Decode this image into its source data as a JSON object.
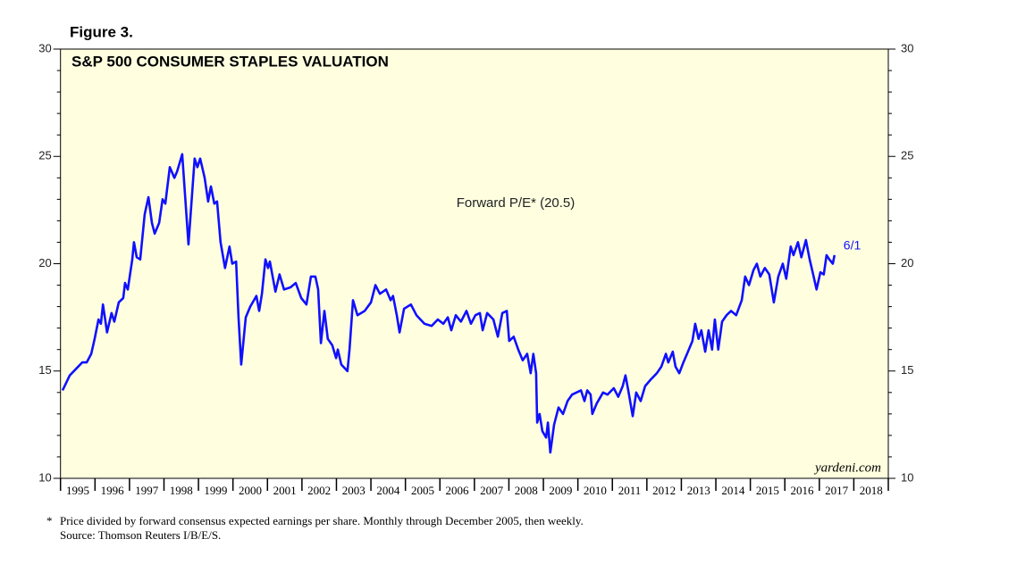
{
  "chart_data": {
    "type": "line",
    "figure_label": "Figure 3.",
    "title": "S&P 500 CONSUMER STAPLES VALUATION",
    "annotation": "Forward P/E* (20.5)",
    "end_label": "6/1",
    "source_brand": "yardeni.com",
    "footnote_marker": "*",
    "footnote": "Price divided by forward consensus expected earnings per share. Monthly through December 2005, then weekly.",
    "source": "Source: Thomson Reuters I/B/E/S.",
    "background": "#ffffe0",
    "xlim": [
      1995,
      2019
    ],
    "xticks": [
      1995,
      1996,
      1997,
      1998,
      1999,
      2000,
      2001,
      2002,
      2003,
      2004,
      2005,
      2006,
      2007,
      2008,
      2009,
      2010,
      2011,
      2012,
      2013,
      2014,
      2015,
      2016,
      2017,
      2018,
      2019
    ],
    "xtick_labels": [
      {
        "value": 1995.5,
        "label": "1995"
      },
      {
        "value": 1996.5,
        "label": "1996"
      },
      {
        "value": 1997.5,
        "label": "1997"
      },
      {
        "value": 1998.5,
        "label": "1998"
      },
      {
        "value": 1999.5,
        "label": "1999"
      },
      {
        "value": 2000.5,
        "label": "2000"
      },
      {
        "value": 2001.5,
        "label": "2001"
      },
      {
        "value": 2002.5,
        "label": "2002"
      },
      {
        "value": 2003.5,
        "label": "2003"
      },
      {
        "value": 2004.5,
        "label": "2004"
      },
      {
        "value": 2005.5,
        "label": "2005"
      },
      {
        "value": 2006.5,
        "label": "2006"
      },
      {
        "value": 2007.5,
        "label": "2007"
      },
      {
        "value": 2008.5,
        "label": "2008"
      },
      {
        "value": 2009.5,
        "label": "2009"
      },
      {
        "value": 2010.5,
        "label": "2010"
      },
      {
        "value": 2011.5,
        "label": "2011"
      },
      {
        "value": 2012.5,
        "label": "2012"
      },
      {
        "value": 2013.5,
        "label": "2013"
      },
      {
        "value": 2014.5,
        "label": "2014"
      },
      {
        "value": 2015.5,
        "label": "2015"
      },
      {
        "value": 2016.5,
        "label": "2016"
      },
      {
        "value": 2017.5,
        "label": "2017"
      },
      {
        "value": 2018.5,
        "label": "2018"
      }
    ],
    "ylim": [
      10,
      30
    ],
    "yticks": [
      10,
      15,
      20,
      25,
      30
    ],
    "yminorticks": [
      11,
      12,
      13,
      14,
      16,
      17,
      18,
      19,
      21,
      22,
      23,
      24,
      26,
      27,
      28,
      29
    ],
    "x": [
      1995.06,
      1995.27,
      1995.45,
      1995.63,
      1995.76,
      1995.89,
      1995.99,
      1996.1,
      1996.17,
      1996.23,
      1996.35,
      1996.48,
      1996.56,
      1996.69,
      1996.82,
      1996.87,
      1996.95,
      1997.08,
      1997.13,
      1997.21,
      1997.31,
      1997.44,
      1997.55,
      1997.65,
      1997.73,
      1997.86,
      1997.96,
      1998.04,
      1998.17,
      1998.3,
      1998.38,
      1998.53,
      1998.71,
      1998.89,
      1998.97,
      1999.05,
      1999.18,
      1999.28,
      1999.36,
      1999.46,
      1999.54,
      1999.64,
      1999.77,
      1999.9,
      1999.98,
      2000.09,
      2000.16,
      2000.24,
      2000.37,
      2000.5,
      2000.68,
      2000.76,
      2000.84,
      2000.94,
      2001.02,
      2001.07,
      2001.23,
      2001.35,
      2001.48,
      2001.67,
      2001.82,
      2001.98,
      2002.13,
      2002.26,
      2002.39,
      2002.47,
      2002.55,
      2002.65,
      2002.75,
      2002.88,
      2002.99,
      2003.04,
      2003.14,
      2003.32,
      2003.38,
      2003.48,
      2003.61,
      2003.82,
      2004.0,
      2004.13,
      2004.26,
      2004.44,
      2004.57,
      2004.64,
      2004.75,
      2004.83,
      2004.96,
      2005.16,
      2005.32,
      2005.55,
      2005.76,
      2005.94,
      2006.1,
      2006.23,
      2006.33,
      2006.46,
      2006.61,
      2006.77,
      2006.9,
      2007.03,
      2007.16,
      2007.24,
      2007.37,
      2007.55,
      2007.68,
      2007.81,
      2007.94,
      2008.01,
      2008.14,
      2008.27,
      2008.4,
      2008.53,
      2008.63,
      2008.71,
      2008.79,
      2008.82,
      2008.89,
      2008.97,
      2009.08,
      2009.13,
      2009.2,
      2009.31,
      2009.44,
      2009.57,
      2009.7,
      2009.83,
      2009.96,
      2010.09,
      2010.19,
      2010.27,
      2010.37,
      2010.42,
      2010.55,
      2010.73,
      2010.86,
      2011.04,
      2011.17,
      2011.3,
      2011.38,
      2011.46,
      2011.59,
      2011.69,
      2011.82,
      2011.95,
      2012.11,
      2012.29,
      2012.42,
      2012.55,
      2012.62,
      2012.75,
      2012.83,
      2012.94,
      2013.06,
      2013.19,
      2013.32,
      2013.4,
      2013.5,
      2013.58,
      2013.69,
      2013.79,
      2013.89,
      2013.97,
      2014.07,
      2014.18,
      2014.31,
      2014.44,
      2014.59,
      2014.75,
      2014.85,
      2014.96,
      2015.09,
      2015.19,
      2015.29,
      2015.42,
      2015.55,
      2015.68,
      2015.81,
      2015.94,
      2016.04,
      2016.17,
      2016.25,
      2016.38,
      2016.48,
      2016.61,
      2016.72,
      2016.82,
      2016.92,
      2017.03,
      2017.13,
      2017.21,
      2017.29,
      2017.39,
      2017.44
    ],
    "series": [
      {
        "name": "Forward P/E",
        "color": "#1010ff",
        "values": [
          14.1,
          14.8,
          15.1,
          15.4,
          15.4,
          15.8,
          16.5,
          17.4,
          17.2,
          18.1,
          16.8,
          17.7,
          17.3,
          18.2,
          18.4,
          19.1,
          18.8,
          20.2,
          21.0,
          20.3,
          20.2,
          22.3,
          23.1,
          21.9,
          21.4,
          21.9,
          23.0,
          22.8,
          24.5,
          24.0,
          24.3,
          25.1,
          20.9,
          24.9,
          24.5,
          24.9,
          24.0,
          22.9,
          23.6,
          22.8,
          22.9,
          21.0,
          19.8,
          20.8,
          20.0,
          20.1,
          17.5,
          15.3,
          17.5,
          18.0,
          18.5,
          17.8,
          18.6,
          20.2,
          19.8,
          20.1,
          18.7,
          19.5,
          18.8,
          18.9,
          19.1,
          18.4,
          18.1,
          19.4,
          19.4,
          18.8,
          16.3,
          17.8,
          16.5,
          16.2,
          15.6,
          16.0,
          15.3,
          15.0,
          16.0,
          18.3,
          17.6,
          17.8,
          18.2,
          19.0,
          18.6,
          18.8,
          18.3,
          18.5,
          17.6,
          16.8,
          17.9,
          18.1,
          17.6,
          17.2,
          17.1,
          17.4,
          17.2,
          17.5,
          16.9,
          17.6,
          17.3,
          17.8,
          17.2,
          17.6,
          17.7,
          16.9,
          17.7,
          17.4,
          16.6,
          17.7,
          17.8,
          16.4,
          16.6,
          16.0,
          15.5,
          15.8,
          14.9,
          15.8,
          14.9,
          12.6,
          13.0,
          12.2,
          11.9,
          12.6,
          11.2,
          12.5,
          13.3,
          13.0,
          13.6,
          13.9,
          14.0,
          14.1,
          13.6,
          14.1,
          13.9,
          13.0,
          13.5,
          14.0,
          13.9,
          14.2,
          13.8,
          14.3,
          14.8,
          14.1,
          12.9,
          14.0,
          13.6,
          14.3,
          14.6,
          14.9,
          15.2,
          15.8,
          15.4,
          15.9,
          15.2,
          14.9,
          15.4,
          15.9,
          16.4,
          17.2,
          16.5,
          16.9,
          15.9,
          16.9,
          16.0,
          17.4,
          16.0,
          17.3,
          17.6,
          17.8,
          17.6,
          18.3,
          19.4,
          19.0,
          19.7,
          20.0,
          19.4,
          19.8,
          19.5,
          18.2,
          19.4,
          20.0,
          19.3,
          20.8,
          20.4,
          21.0,
          20.3,
          21.1,
          20.2,
          19.5,
          18.8,
          19.6,
          19.5,
          20.4,
          20.2,
          20.0,
          20.4
        ]
      }
    ]
  }
}
